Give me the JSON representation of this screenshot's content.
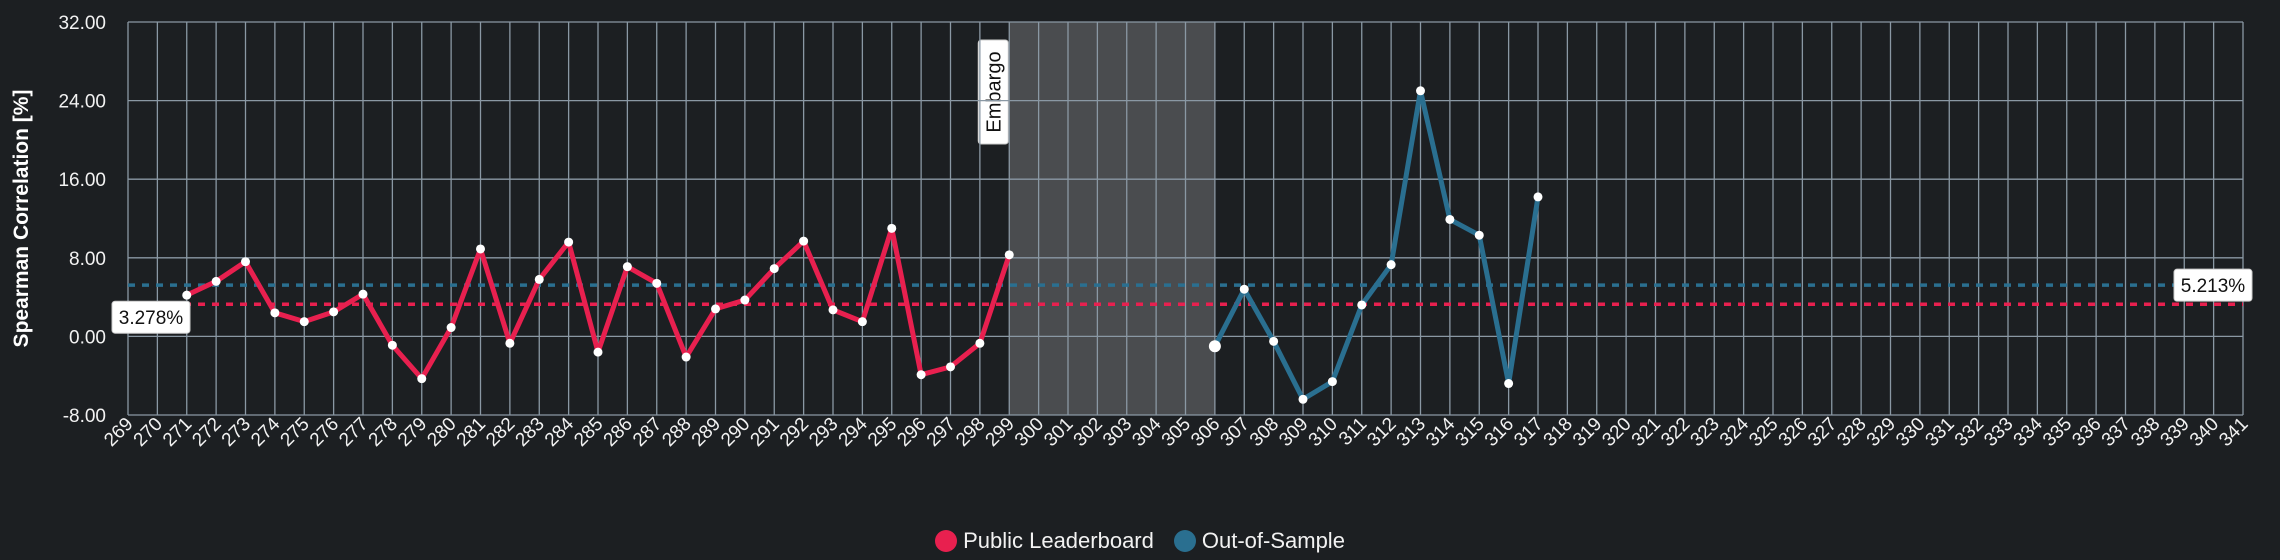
{
  "chart_data": {
    "type": "line",
    "xlabel": "",
    "ylabel": "Spearman Correlation [%]",
    "ylim": [
      -8,
      32
    ],
    "yticks": [
      -8,
      0,
      8,
      16,
      24,
      32
    ],
    "ytick_labels": [
      "-8.00",
      "0.00",
      "8.00",
      "16.00",
      "24.00",
      "32.00"
    ],
    "xlim": [
      269,
      341
    ],
    "x_categories": [
      "269",
      "270",
      "271",
      "272",
      "273",
      "274",
      "275",
      "276",
      "277",
      "278",
      "279",
      "280",
      "281",
      "282",
      "283",
      "284",
      "285",
      "286",
      "287",
      "288",
      "289",
      "290",
      "291",
      "292",
      "293",
      "294",
      "295",
      "296",
      "297",
      "298",
      "299",
      "300",
      "301",
      "302",
      "303",
      "304",
      "305",
      "306",
      "307",
      "308",
      "309",
      "310",
      "311",
      "312",
      "313",
      "314",
      "315",
      "316",
      "317",
      "318",
      "319",
      "320",
      "321",
      "322",
      "323",
      "324",
      "325",
      "326",
      "327",
      "328",
      "329",
      "330",
      "331",
      "332",
      "333",
      "334",
      "335",
      "336",
      "337",
      "338",
      "339",
      "340",
      "341"
    ],
    "grid": true,
    "legend_position": "bottom-center",
    "series": [
      {
        "name": "Public Leaderboard",
        "color": "#e8204f",
        "x": [
          271,
          272,
          273,
          274,
          275,
          276,
          277,
          278,
          279,
          280,
          281,
          282,
          283,
          284,
          285,
          286,
          287,
          288,
          289,
          290,
          291,
          292,
          293,
          294,
          295,
          296,
          297,
          298,
          299
        ],
        "y": [
          4.2,
          5.6,
          7.6,
          2.4,
          1.5,
          2.5,
          4.3,
          -0.9,
          -4.3,
          0.9,
          8.9,
          -0.7,
          5.8,
          9.6,
          -1.6,
          7.1,
          5.4,
          -2.1,
          2.8,
          3.7,
          6.9,
          9.7,
          2.7,
          1.5,
          11.0,
          -3.9,
          -3.1,
          -0.7,
          8.3
        ]
      },
      {
        "name": "Out-of-Sample",
        "color": "#2a6f90",
        "x": [
          306,
          307,
          308,
          309,
          310,
          311,
          312,
          313,
          314,
          315,
          316,
          317
        ],
        "y": [
          -1.0,
          4.8,
          -0.5,
          -6.4,
          -4.6,
          3.2,
          7.3,
          25.0,
          11.9,
          10.3,
          -4.8,
          14.2
        ]
      }
    ],
    "reference_lines": [
      {
        "series": "Public Leaderboard",
        "value": 3.278,
        "label": "3.278%",
        "color": "#e8204f"
      },
      {
        "series": "Out-of-Sample",
        "value": 5.213,
        "label": "5.213%",
        "color": "#2a6f90"
      }
    ],
    "bands": [
      {
        "label": "Embargo",
        "from": 299,
        "to": 306
      }
    ]
  },
  "legend": {
    "items": [
      {
        "label": "Public Leaderboard",
        "color": "#e8204f"
      },
      {
        "label": "Out-of-Sample",
        "color": "#2a6f90"
      }
    ]
  }
}
